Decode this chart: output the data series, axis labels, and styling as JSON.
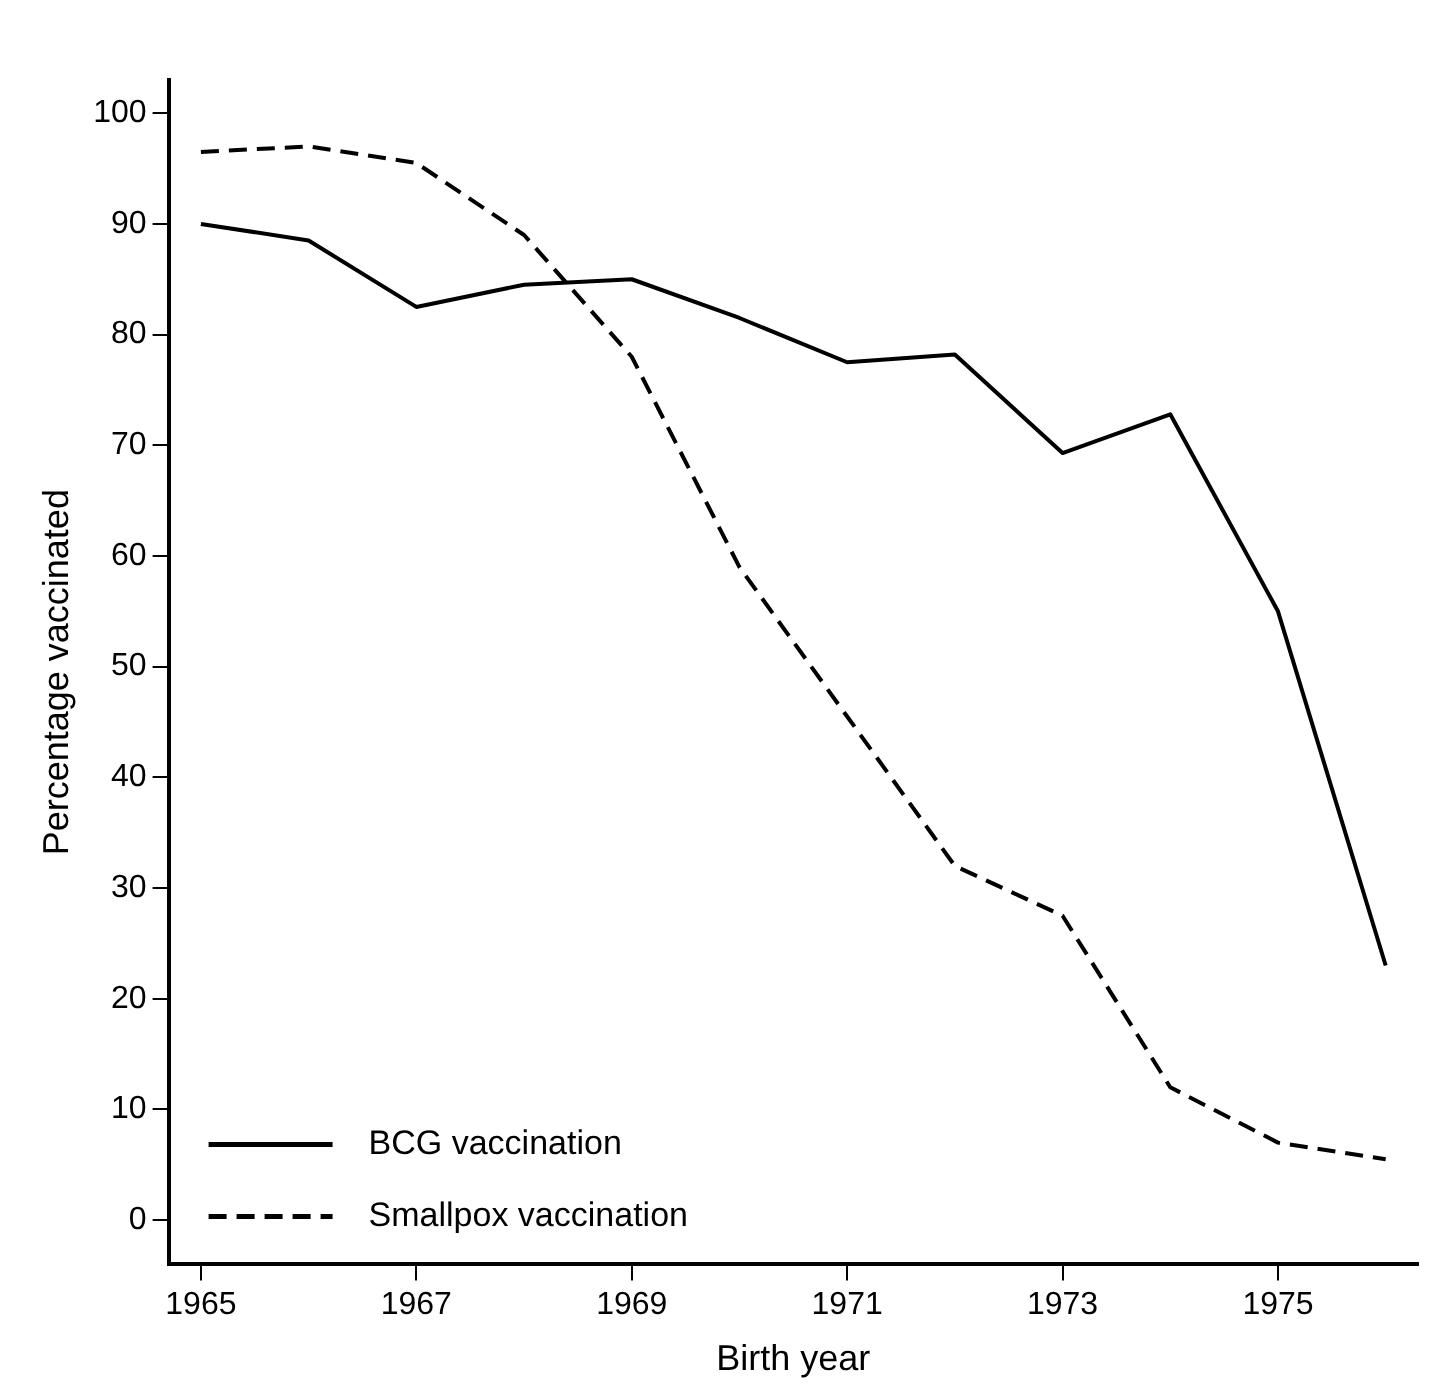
{
  "chart_data": {
    "type": "line",
    "xlabel": "Birth year",
    "ylabel": "Percentage vaccinated",
    "x": [
      1965,
      1966,
      1967,
      1968,
      1969,
      1970,
      1971,
      1972,
      1973,
      1974,
      1975,
      1976
    ],
    "series": [
      {
        "name": "BCG vaccination",
        "color": "#000000",
        "line_style": "solid",
        "values": [
          90,
          88.5,
          82.5,
          84.5,
          85,
          81.5,
          77.5,
          78.2,
          69.3,
          72.8,
          55,
          23
        ]
      },
      {
        "name": "Smallpox vaccination",
        "color": "#000000",
        "line_style": "dashed",
        "values": [
          96.5,
          97,
          95.5,
          89,
          78,
          59,
          45.5,
          32,
          27.5,
          12,
          7,
          5.5
        ]
      }
    ],
    "xlim": [
      1964.7,
      1976.3
    ],
    "xticks": [
      1965,
      1967,
      1969,
      1971,
      1973,
      1975
    ],
    "ylim": [
      -4,
      103
    ],
    "yticks": [
      0,
      10,
      20,
      30,
      40,
      50,
      60,
      70,
      80,
      90,
      100
    ],
    "grid": false,
    "legend": "bottom left",
    "marker": "none"
  }
}
